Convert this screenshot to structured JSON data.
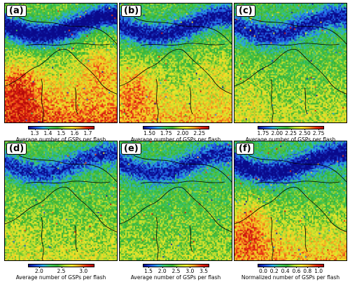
{
  "panels": [
    {
      "label": "(a)",
      "ticks": [
        "1.3",
        "1.4",
        "1.5",
        "1.6",
        "1.7"
      ],
      "cbar_label": "Average number of GSPs per flash",
      "range": [
        1.25,
        1.75
      ],
      "scheme": "a"
    },
    {
      "label": "(b)",
      "ticks": [
        "1.50",
        "1.75",
        "2.00",
        "2.25"
      ],
      "cbar_label": "Average number of GSPs per flash",
      "range": [
        1.4,
        2.4
      ],
      "scheme": "b"
    },
    {
      "label": "(c)",
      "ticks": [
        "1.75",
        "2.00",
        "2.25",
        "2.50",
        "2.75"
      ],
      "cbar_label": "Average number of GSPs per flash",
      "range": [
        1.65,
        2.85
      ],
      "scheme": "c"
    },
    {
      "label": "(d)",
      "ticks": [
        "2.0",
        "2.5",
        "3.0"
      ],
      "cbar_label": "Average number of GSPs per flash",
      "range": [
        1.75,
        3.25
      ],
      "scheme": "d"
    },
    {
      "label": "(e)",
      "ticks": [
        "1.5",
        "2.0",
        "2.5",
        "3.0",
        "3.5"
      ],
      "cbar_label": "Average number of GSPs per flash",
      "range": [
        1.3,
        3.7
      ],
      "scheme": "e"
    },
    {
      "label": "(f)",
      "ticks": [
        "0.0",
        "0.2",
        "0.4",
        "0.6",
        "0.8",
        "1.0"
      ],
      "cbar_label": "Normalized number of GSPs per flash",
      "range": [
        -0.1,
        1.1
      ],
      "scheme": "f"
    }
  ],
  "colormap": [
    "#0a0a8c",
    "#2050e0",
    "#2aa8e8",
    "#3cc85a",
    "#34b034",
    "#b4dc32",
    "#f0e628",
    "#f5a020",
    "#e82a14",
    "#b40a0a"
  ]
}
